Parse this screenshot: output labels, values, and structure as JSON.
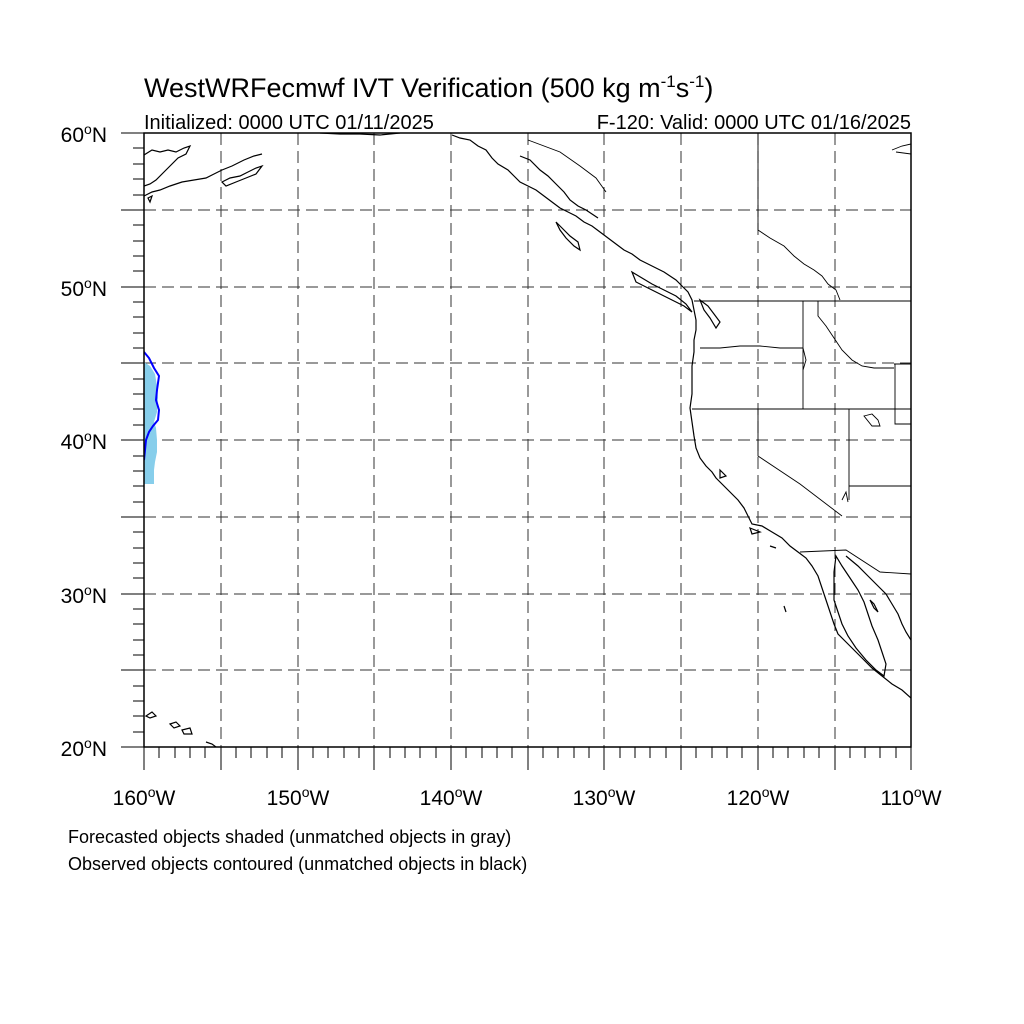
{
  "title": {
    "main": "WestWRFecmwf IVT Verification (500 kg m",
    "sup1": "-1",
    "mid": "s",
    "sup2": "-1",
    "close": ")"
  },
  "subtitle_left": "Initialized: 0000 UTC 01/11/2025",
  "subtitle_right": "F-120: Valid: 0000 UTC 01/16/2025",
  "lat_labels": [
    {
      "deg": "60",
      "suffix": "N"
    },
    {
      "deg": "50",
      "suffix": "N"
    },
    {
      "deg": "40",
      "suffix": "N"
    },
    {
      "deg": "30",
      "suffix": "N"
    },
    {
      "deg": "20",
      "suffix": "N"
    }
  ],
  "lon_labels": [
    {
      "deg": "160",
      "suffix": "W"
    },
    {
      "deg": "150",
      "suffix": "W"
    },
    {
      "deg": "140",
      "suffix": "W"
    },
    {
      "deg": "130",
      "suffix": "W"
    },
    {
      "deg": "120",
      "suffix": "W"
    },
    {
      "deg": "110",
      "suffix": "W"
    }
  ],
  "footnote_1": "Forecasted objects shaded (unmatched objects in gray)",
  "footnote_2": "Observed objects contoured (unmatched objects in black)",
  "colors": {
    "forecast_fill": "#87ceeb",
    "observed_contour": "#0000ff",
    "coastline": "#000000",
    "gridline": "#333333"
  },
  "map_extent": {
    "lon_min": -160,
    "lon_max": -110,
    "lat_min": 20,
    "lat_max": 60
  }
}
